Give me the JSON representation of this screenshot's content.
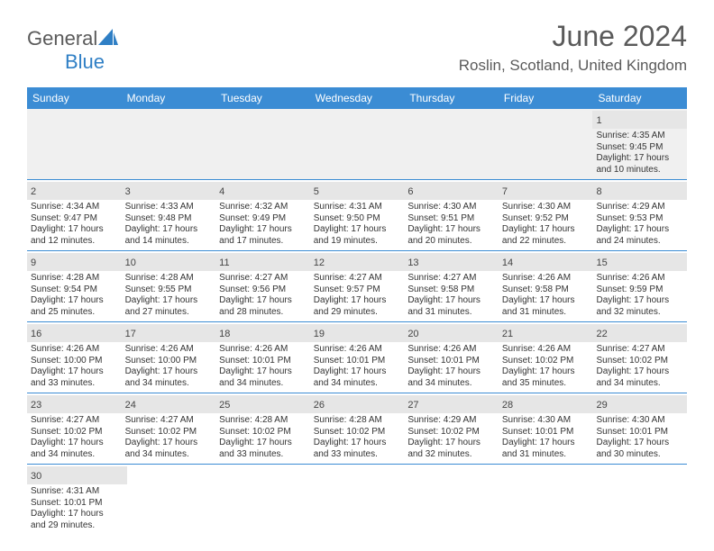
{
  "brand": {
    "general": "General",
    "blue": "Blue"
  },
  "title": "June 2024",
  "location": "Roslin, Scotland, United Kingdom",
  "colors": {
    "header_bg": "#3b8cd4",
    "header_text": "#ffffff",
    "daynum_bg": "#e6e6e6",
    "border": "#3b8cd4",
    "text": "#333333",
    "title_text": "#5a5a5a",
    "logo_gray": "#5a5a5a",
    "logo_blue": "#2f7fc5"
  },
  "weekdays": [
    "Sunday",
    "Monday",
    "Tuesday",
    "Wednesday",
    "Thursday",
    "Friday",
    "Saturday"
  ],
  "weeks": [
    [
      null,
      null,
      null,
      null,
      null,
      null,
      {
        "n": "1",
        "sr": "Sunrise: 4:35 AM",
        "ss": "Sunset: 9:45 PM",
        "d1": "Daylight: 17 hours",
        "d2": "and 10 minutes."
      }
    ],
    [
      {
        "n": "2",
        "sr": "Sunrise: 4:34 AM",
        "ss": "Sunset: 9:47 PM",
        "d1": "Daylight: 17 hours",
        "d2": "and 12 minutes."
      },
      {
        "n": "3",
        "sr": "Sunrise: 4:33 AM",
        "ss": "Sunset: 9:48 PM",
        "d1": "Daylight: 17 hours",
        "d2": "and 14 minutes."
      },
      {
        "n": "4",
        "sr": "Sunrise: 4:32 AM",
        "ss": "Sunset: 9:49 PM",
        "d1": "Daylight: 17 hours",
        "d2": "and 17 minutes."
      },
      {
        "n": "5",
        "sr": "Sunrise: 4:31 AM",
        "ss": "Sunset: 9:50 PM",
        "d1": "Daylight: 17 hours",
        "d2": "and 19 minutes."
      },
      {
        "n": "6",
        "sr": "Sunrise: 4:30 AM",
        "ss": "Sunset: 9:51 PM",
        "d1": "Daylight: 17 hours",
        "d2": "and 20 minutes."
      },
      {
        "n": "7",
        "sr": "Sunrise: 4:30 AM",
        "ss": "Sunset: 9:52 PM",
        "d1": "Daylight: 17 hours",
        "d2": "and 22 minutes."
      },
      {
        "n": "8",
        "sr": "Sunrise: 4:29 AM",
        "ss": "Sunset: 9:53 PM",
        "d1": "Daylight: 17 hours",
        "d2": "and 24 minutes."
      }
    ],
    [
      {
        "n": "9",
        "sr": "Sunrise: 4:28 AM",
        "ss": "Sunset: 9:54 PM",
        "d1": "Daylight: 17 hours",
        "d2": "and 25 minutes."
      },
      {
        "n": "10",
        "sr": "Sunrise: 4:28 AM",
        "ss": "Sunset: 9:55 PM",
        "d1": "Daylight: 17 hours",
        "d2": "and 27 minutes."
      },
      {
        "n": "11",
        "sr": "Sunrise: 4:27 AM",
        "ss": "Sunset: 9:56 PM",
        "d1": "Daylight: 17 hours",
        "d2": "and 28 minutes."
      },
      {
        "n": "12",
        "sr": "Sunrise: 4:27 AM",
        "ss": "Sunset: 9:57 PM",
        "d1": "Daylight: 17 hours",
        "d2": "and 29 minutes."
      },
      {
        "n": "13",
        "sr": "Sunrise: 4:27 AM",
        "ss": "Sunset: 9:58 PM",
        "d1": "Daylight: 17 hours",
        "d2": "and 31 minutes."
      },
      {
        "n": "14",
        "sr": "Sunrise: 4:26 AM",
        "ss": "Sunset: 9:58 PM",
        "d1": "Daylight: 17 hours",
        "d2": "and 31 minutes."
      },
      {
        "n": "15",
        "sr": "Sunrise: 4:26 AM",
        "ss": "Sunset: 9:59 PM",
        "d1": "Daylight: 17 hours",
        "d2": "and 32 minutes."
      }
    ],
    [
      {
        "n": "16",
        "sr": "Sunrise: 4:26 AM",
        "ss": "Sunset: 10:00 PM",
        "d1": "Daylight: 17 hours",
        "d2": "and 33 minutes."
      },
      {
        "n": "17",
        "sr": "Sunrise: 4:26 AM",
        "ss": "Sunset: 10:00 PM",
        "d1": "Daylight: 17 hours",
        "d2": "and 34 minutes."
      },
      {
        "n": "18",
        "sr": "Sunrise: 4:26 AM",
        "ss": "Sunset: 10:01 PM",
        "d1": "Daylight: 17 hours",
        "d2": "and 34 minutes."
      },
      {
        "n": "19",
        "sr": "Sunrise: 4:26 AM",
        "ss": "Sunset: 10:01 PM",
        "d1": "Daylight: 17 hours",
        "d2": "and 34 minutes."
      },
      {
        "n": "20",
        "sr": "Sunrise: 4:26 AM",
        "ss": "Sunset: 10:01 PM",
        "d1": "Daylight: 17 hours",
        "d2": "and 34 minutes."
      },
      {
        "n": "21",
        "sr": "Sunrise: 4:26 AM",
        "ss": "Sunset: 10:02 PM",
        "d1": "Daylight: 17 hours",
        "d2": "and 35 minutes."
      },
      {
        "n": "22",
        "sr": "Sunrise: 4:27 AM",
        "ss": "Sunset: 10:02 PM",
        "d1": "Daylight: 17 hours",
        "d2": "and 34 minutes."
      }
    ],
    [
      {
        "n": "23",
        "sr": "Sunrise: 4:27 AM",
        "ss": "Sunset: 10:02 PM",
        "d1": "Daylight: 17 hours",
        "d2": "and 34 minutes."
      },
      {
        "n": "24",
        "sr": "Sunrise: 4:27 AM",
        "ss": "Sunset: 10:02 PM",
        "d1": "Daylight: 17 hours",
        "d2": "and 34 minutes."
      },
      {
        "n": "25",
        "sr": "Sunrise: 4:28 AM",
        "ss": "Sunset: 10:02 PM",
        "d1": "Daylight: 17 hours",
        "d2": "and 33 minutes."
      },
      {
        "n": "26",
        "sr": "Sunrise: 4:28 AM",
        "ss": "Sunset: 10:02 PM",
        "d1": "Daylight: 17 hours",
        "d2": "and 33 minutes."
      },
      {
        "n": "27",
        "sr": "Sunrise: 4:29 AM",
        "ss": "Sunset: 10:02 PM",
        "d1": "Daylight: 17 hours",
        "d2": "and 32 minutes."
      },
      {
        "n": "28",
        "sr": "Sunrise: 4:30 AM",
        "ss": "Sunset: 10:01 PM",
        "d1": "Daylight: 17 hours",
        "d2": "and 31 minutes."
      },
      {
        "n": "29",
        "sr": "Sunrise: 4:30 AM",
        "ss": "Sunset: 10:01 PM",
        "d1": "Daylight: 17 hours",
        "d2": "and 30 minutes."
      }
    ],
    [
      {
        "n": "30",
        "sr": "Sunrise: 4:31 AM",
        "ss": "Sunset: 10:01 PM",
        "d1": "Daylight: 17 hours",
        "d2": "and 29 minutes."
      },
      null,
      null,
      null,
      null,
      null,
      null
    ]
  ]
}
